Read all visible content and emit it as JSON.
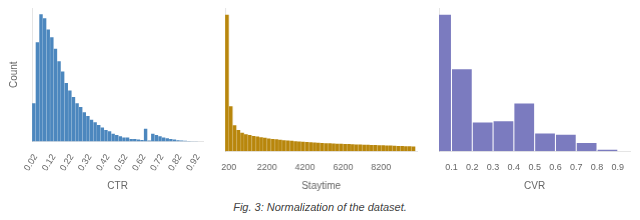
{
  "caption": "Fig. 3: Normalization of the dataset.",
  "chart_data": [
    {
      "type": "bar",
      "xlabel": "CTR",
      "ylabel": "Count",
      "color": "#4C87BE",
      "x": [
        0.01,
        0.03,
        0.05,
        0.07,
        0.09,
        0.11,
        0.13,
        0.15,
        0.17,
        0.19,
        0.21,
        0.23,
        0.25,
        0.27,
        0.29,
        0.31,
        0.33,
        0.35,
        0.37,
        0.39,
        0.41,
        0.43,
        0.45,
        0.47,
        0.49,
        0.51,
        0.53,
        0.55,
        0.57,
        0.59,
        0.61,
        0.63,
        0.65,
        0.67,
        0.69,
        0.71,
        0.73,
        0.75,
        0.77,
        0.79,
        0.81,
        0.83,
        0.85,
        0.87,
        0.89,
        0.91
      ],
      "values": [
        0.3,
        0.78,
        1.0,
        0.97,
        0.88,
        0.82,
        0.73,
        0.63,
        0.55,
        0.46,
        0.4,
        0.35,
        0.3,
        0.27,
        0.23,
        0.2,
        0.17,
        0.15,
        0.13,
        0.11,
        0.09,
        0.08,
        0.06,
        0.05,
        0.04,
        0.03,
        0.03,
        0.02,
        0.02,
        0.015,
        0.012,
        0.1,
        0.008,
        0.06,
        0.05,
        0.04,
        0.03,
        0.025,
        0.02,
        0.015,
        0.01,
        0.008,
        0.005,
        0.003,
        0.002,
        0.001
      ],
      "xlim": [
        0.0,
        0.95
      ],
      "xticks": [
        0.02,
        0.12,
        0.22,
        0.32,
        0.42,
        0.52,
        0.62,
        0.72,
        0.82,
        0.92
      ],
      "ylim": [
        0,
        1.05
      ],
      "grid": false,
      "tick_labels": "x"
    },
    {
      "type": "bar",
      "xlabel": "Staytime",
      "color": "#B8860B",
      "x": [
        100,
        300,
        500,
        700,
        900,
        1100,
        1300,
        1500,
        1700,
        1900,
        2100,
        2300,
        2500,
        2700,
        2900,
        3100,
        3300,
        3500,
        3700,
        3900,
        4100,
        4300,
        4500,
        4700,
        4900,
        5100,
        5300,
        5500,
        5700,
        5900,
        6100,
        6300,
        6500,
        6700,
        6900,
        7100,
        7300,
        7500,
        7700,
        7900,
        8100,
        8300,
        8500,
        8700,
        8900,
        9100,
        9300,
        9500,
        9700,
        9900
      ],
      "values": [
        1.0,
        0.33,
        0.19,
        0.155,
        0.135,
        0.125,
        0.118,
        0.112,
        0.107,
        0.102,
        0.098,
        0.094,
        0.09,
        0.087,
        0.084,
        0.081,
        0.078,
        0.076,
        0.073,
        0.071,
        0.069,
        0.067,
        0.065,
        0.064,
        0.062,
        0.06,
        0.059,
        0.058,
        0.056,
        0.055,
        0.054,
        0.053,
        0.052,
        0.051,
        0.05,
        0.049,
        0.048,
        0.047,
        0.046,
        0.045,
        0.044,
        0.043,
        0.042,
        0.041,
        0.04,
        0.039,
        0.038,
        0.037,
        0.036,
        0.035
      ],
      "xlim": [
        0,
        10100
      ],
      "xticks": [
        200,
        2200,
        4200,
        6200,
        8200
      ],
      "ylim": [
        0,
        1.05
      ],
      "grid": false,
      "tick_labels": "x"
    },
    {
      "type": "bar",
      "xlabel": "CVR",
      "color": "#7B7BBF",
      "x": [
        0.05,
        0.15,
        0.25,
        0.35,
        0.45,
        0.55,
        0.65,
        0.75,
        0.85
      ],
      "values": [
        1.0,
        0.6,
        0.21,
        0.22,
        0.35,
        0.13,
        0.12,
        0.06,
        0.01
      ],
      "xlim": [
        0.04,
        0.96
      ],
      "xticks": [
        0.1,
        0.2,
        0.3,
        0.4,
        0.5,
        0.6,
        0.7,
        0.8,
        0.9
      ],
      "ylim": [
        0,
        1.05
      ],
      "grid": false,
      "tick_labels": "x"
    }
  ]
}
